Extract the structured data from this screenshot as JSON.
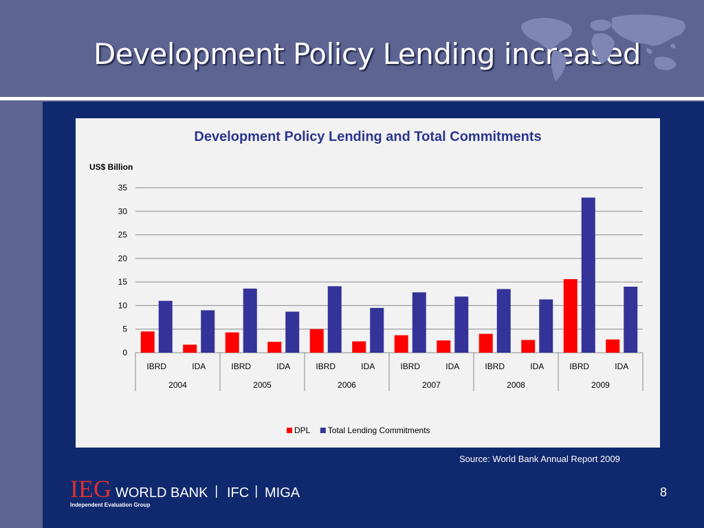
{
  "slide": {
    "title": "Development Policy Lending increased",
    "source": "Source: World Bank Annual Report 2009",
    "page_number": "8"
  },
  "logo": {
    "ieg": "IEG",
    "world_bank": "WORLD BANK",
    "ifc": "IFC",
    "miga": "MIGA",
    "tagline": "Independent Evaluation Group"
  },
  "colors": {
    "dpl": "#ff0000",
    "total": "#333399",
    "background": "#5e6492",
    "panel": "#10296e"
  },
  "chart_data": {
    "type": "bar",
    "title": "Development Policy Lending and Total Commitments",
    "ylabel": "US$ Billion",
    "xlabel": "",
    "ylim": [
      0,
      35
    ],
    "yticks": [
      0,
      5,
      10,
      15,
      20,
      25,
      30,
      35
    ],
    "grid": true,
    "legend_position": "bottom",
    "groups": [
      "2004",
      "2005",
      "2006",
      "2007",
      "2008",
      "2009"
    ],
    "categories": [
      "IBRD",
      "IDA",
      "IBRD",
      "IDA",
      "IBRD",
      "IDA",
      "IBRD",
      "IDA",
      "IBRD",
      "IDA",
      "IBRD",
      "IDA"
    ],
    "series": [
      {
        "name": "DPL",
        "color": "#ff0000",
        "values": [
          4.5,
          1.7,
          4.3,
          2.3,
          5.0,
          2.4,
          3.7,
          2.6,
          4.0,
          2.7,
          15.6,
          2.8
        ]
      },
      {
        "name": "Total Lending Commitments",
        "color": "#333399",
        "values": [
          11.0,
          9.0,
          13.6,
          8.7,
          14.1,
          9.5,
          12.8,
          11.9,
          13.5,
          11.3,
          32.9,
          14.0
        ]
      }
    ]
  }
}
